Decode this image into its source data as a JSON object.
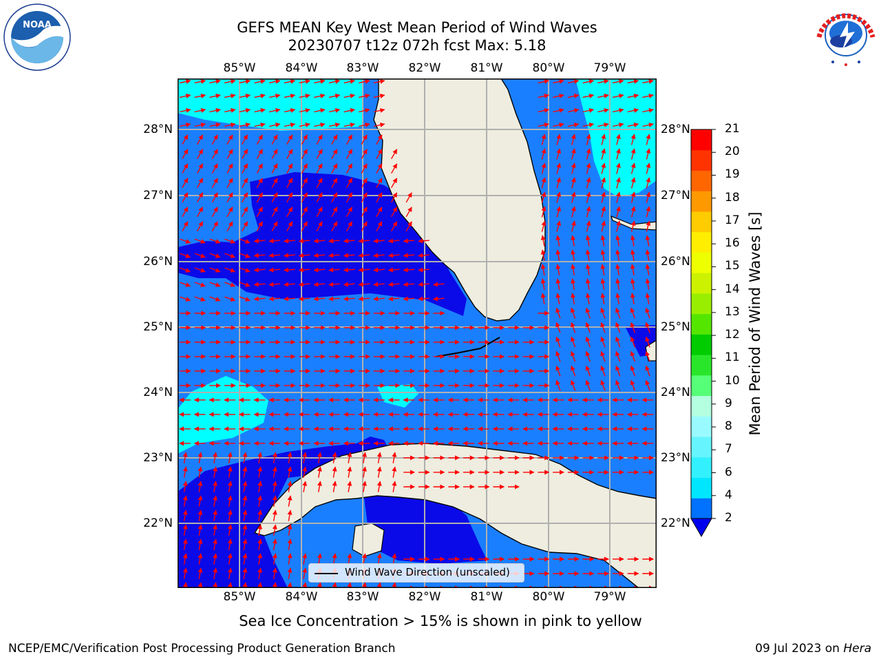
{
  "header": {
    "title_line1": "GEFS MEAN Key West Mean Period of Wind Waves",
    "title_line2": "20230707 t12z 072h fcst   Max: 5.18"
  },
  "logos": {
    "left": {
      "icon": "noaa-logo",
      "text": "NOAA",
      "ring_text": "NATIONAL OCEANIC AND ATMOSPHERIC ADMINISTRATION · U.S. DEPARTMENT OF COMMERCE"
    },
    "right": {
      "icon": "nws-logo",
      "ring_text": "NATIONAL WEATHER SERVICE"
    }
  },
  "axes": {
    "lon_labels": [
      "85°W",
      "84°W",
      "83°W",
      "82°W",
      "81°W",
      "80°W",
      "79°W"
    ],
    "lat_labels": [
      "28°N",
      "27°N",
      "26°N",
      "25°N",
      "24°N",
      "23°N",
      "22°N"
    ],
    "lon_values": [
      -85,
      -84,
      -83,
      -82,
      -81,
      -80,
      -79
    ],
    "lat_values": [
      28,
      27,
      26,
      25,
      24,
      23,
      22
    ],
    "extent": {
      "lon_min": -86.0,
      "lon_max": -78.3,
      "lat_min": 21.0,
      "lat_max": 28.75
    }
  },
  "colorbar": {
    "label": "Mean Period of Wind Waves [s]",
    "ticks": [
      "2",
      "4",
      "6",
      "7",
      "8",
      "9",
      "10",
      "11",
      "12",
      "13",
      "14",
      "15",
      "16",
      "17",
      "18",
      "19",
      "20",
      "21"
    ],
    "colors": [
      "#0072ff",
      "#00e6ff",
      "#33f0ff",
      "#66f5ff",
      "#99fbff",
      "#b3ffe0",
      "#55ff77",
      "#2ae62a",
      "#00cc00",
      "#55e600",
      "#99ee00",
      "#ccf200",
      "#eeff00",
      "#ffee00",
      "#ffcc00",
      "#ff9900",
      "#ff6600",
      "#ff3300",
      "#ff0000"
    ],
    "extend": "min",
    "under_color": "#0000ee"
  },
  "map": {
    "land_color": "#eeeddf",
    "wave_colors": {
      "band_2_4": "#1a7fff",
      "band_4_6": "#00ffff",
      "below_2": "#0a0ae8"
    },
    "arrow_color": "#ff0000",
    "grid": "on"
  },
  "legend": {
    "label": "Wind Wave Direction (unscaled)"
  },
  "note": "Sea Ice Concentration > 15% is shown in pink to yellow",
  "footer": {
    "left": "NCEP/EMC/Verification Post Processing Product Generation Branch",
    "right_date": "09 Jul 2023 on ",
    "right_host": "Hera"
  }
}
